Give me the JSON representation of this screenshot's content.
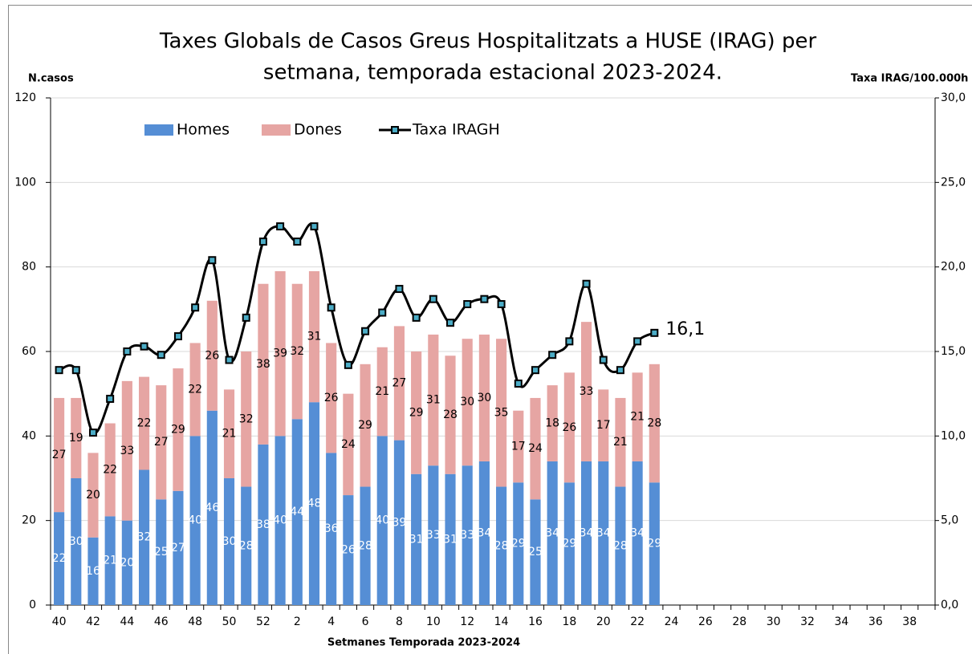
{
  "chart_data": {
    "type": "bar+line",
    "title": [
      "Taxes Globals  de Casos Greus Hospitalitzats a HUSE (IRAG) per",
      "setmana, temporada estacional 2023-2024."
    ],
    "y_label": "N.casos",
    "y2_label": "Taxa IRAG/100.000h",
    "x_label": "Setmanes  Temporada 2023-2024",
    "categories": [
      "40",
      null,
      "42",
      null,
      "44",
      null,
      "46",
      null,
      "48",
      null,
      "50",
      null,
      "52",
      null,
      "2",
      null,
      "4",
      null,
      "6",
      null,
      "8",
      null,
      "10",
      null,
      "12",
      null,
      "14",
      null,
      "16",
      null,
      "18",
      null,
      "20",
      null,
      "22",
      null,
      "24",
      null,
      "26",
      null,
      "28",
      null,
      "30",
      null,
      "32",
      null,
      "34",
      null,
      "36",
      null,
      "38",
      null
    ],
    "series": [
      {
        "name": "Homes",
        "color": "#558ed5",
        "stack": true,
        "values": [
          22,
          30,
          16,
          21,
          20,
          32,
          25,
          27,
          40,
          46,
          30,
          28,
          38,
          40,
          44,
          48,
          36,
          26,
          28,
          40,
          39,
          31,
          33,
          31,
          33,
          34,
          28,
          29,
          25,
          34,
          29,
          34,
          34,
          28,
          34,
          29,
          null,
          null,
          null,
          null,
          null,
          null,
          null,
          null,
          null,
          null,
          null,
          null,
          null,
          null,
          null,
          null
        ]
      },
      {
        "name": "Dones",
        "color": "#e6a5a3",
        "stack": true,
        "values": [
          27,
          19,
          20,
          22,
          33,
          22,
          27,
          29,
          22,
          26,
          21,
          32,
          38,
          39,
          32,
          31,
          26,
          24,
          29,
          21,
          27,
          29,
          31,
          28,
          30,
          30,
          35,
          17,
          24,
          18,
          26,
          33,
          17,
          21,
          21,
          28,
          null,
          null,
          null,
          null,
          null,
          null,
          null,
          null,
          null,
          null,
          null,
          null,
          null,
          null,
          null,
          null
        ]
      },
      {
        "name": "Taxa IRAGH",
        "color": "#000000",
        "marker_color": "#4bacc6",
        "type": "line",
        "axis": "y2",
        "values": [
          13.9,
          13.9,
          10.2,
          12.2,
          15.0,
          15.3,
          14.8,
          15.9,
          17.6,
          20.4,
          14.5,
          17.0,
          21.5,
          22.4,
          21.5,
          22.4,
          17.6,
          14.2,
          16.2,
          17.3,
          18.7,
          17.0,
          18.1,
          16.7,
          17.8,
          18.1,
          17.8,
          13.1,
          13.9,
          14.8,
          15.6,
          19.0,
          14.5,
          13.9,
          15.6,
          16.1,
          null,
          null,
          null,
          null,
          null,
          null,
          null,
          null,
          null,
          null,
          null,
          null,
          null,
          null,
          null,
          null
        ],
        "value_labels": [
          null,
          null,
          null,
          null,
          null,
          null,
          null,
          null,
          null,
          null,
          null,
          null,
          null,
          null,
          null,
          null,
          null,
          null,
          null,
          null,
          null,
          null,
          null,
          null,
          null,
          null,
          null,
          null,
          null,
          null,
          null,
          null,
          null,
          null,
          null,
          "16,1",
          null,
          null,
          null,
          null,
          null,
          null,
          null,
          null,
          null,
          null,
          null,
          null,
          null,
          null,
          null,
          null
        ]
      }
    ],
    "ylim": [
      0,
      120
    ],
    "yticks": [
      0,
      20,
      40,
      60,
      80,
      100,
      120
    ],
    "y2lim": [
      0,
      30
    ],
    "y2ticks": [
      {
        "value": 0,
        "label": "0,0"
      },
      {
        "value": 5,
        "label": "5,0"
      },
      {
        "value": 10,
        "label": "10,0"
      },
      {
        "value": 15,
        "label": "15,0"
      },
      {
        "value": 20,
        "label": "20,0"
      },
      {
        "value": 25,
        "label": "25,0"
      },
      {
        "value": 30,
        "label": "30,0"
      }
    ],
    "legend": "top-left"
  }
}
